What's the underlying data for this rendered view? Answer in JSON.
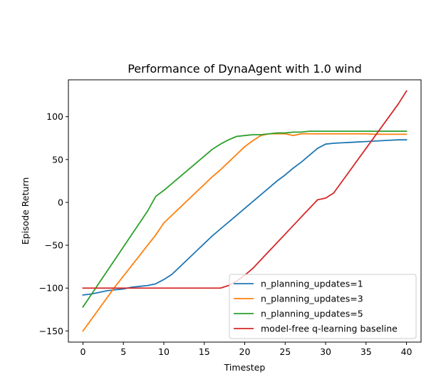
{
  "chart_data": {
    "type": "line",
    "title": "Performance of DynaAgent with 1.0 wind",
    "xlabel": "Timestep",
    "ylabel": "Episode Return",
    "xlim": [
      -1.8,
      41.8
    ],
    "ylim": [
      -163,
      143
    ],
    "xticks": [
      0,
      5,
      10,
      15,
      20,
      25,
      30,
      35,
      40
    ],
    "yticks": [
      -150,
      -100,
      -50,
      0,
      50,
      100
    ],
    "grid": false,
    "legend_position": "lower-right",
    "series": [
      {
        "name": "n_planning_updates=1",
        "color": "#1f77b4",
        "x": [
          0,
          1,
          2,
          3,
          4,
          5,
          6,
          7,
          8,
          9,
          10,
          11,
          12,
          13,
          14,
          15,
          16,
          17,
          18,
          19,
          20,
          21,
          22,
          23,
          24,
          25,
          26,
          27,
          28,
          29,
          30,
          31,
          32,
          33,
          34,
          35,
          36,
          37,
          38,
          39,
          40
        ],
        "y": [
          -108,
          -107,
          -105,
          -103,
          -102,
          -101,
          -99,
          -98,
          -97,
          -95,
          -90,
          -84,
          -75,
          -66,
          -57,
          -48,
          -39,
          -31,
          -23,
          -15,
          -7,
          1,
          9,
          17,
          25,
          32,
          40,
          47,
          55,
          63,
          68,
          69,
          69.5,
          70,
          70.5,
          71,
          71.5,
          72,
          72.5,
          73,
          73
        ]
      },
      {
        "name": "n_planning_updates=3",
        "color": "#ff7f0e",
        "x": [
          0,
          1,
          2,
          3,
          4,
          5,
          6,
          7,
          8,
          9,
          10,
          11,
          12,
          13,
          14,
          15,
          16,
          17,
          18,
          19,
          20,
          21,
          22,
          23,
          24,
          25,
          26,
          27,
          28,
          29,
          30,
          31,
          32,
          33,
          34,
          35,
          36,
          37,
          38,
          39,
          40
        ],
        "y": [
          -150,
          -137,
          -124,
          -111,
          -98,
          -86,
          -74,
          -62,
          -50,
          -38,
          -24,
          -15,
          -6,
          3,
          12,
          21,
          30,
          38,
          47,
          56,
          65,
          72,
          78,
          80,
          80,
          80,
          78,
          80,
          80,
          80,
          80,
          80,
          80,
          80,
          80,
          80,
          79.5,
          79.5,
          79.5,
          79.5,
          79.5
        ]
      },
      {
        "name": "n_planning_updates=5",
        "color": "#2ca02c",
        "x": [
          0,
          1,
          2,
          3,
          4,
          5,
          6,
          7,
          8,
          9,
          10,
          11,
          12,
          13,
          14,
          15,
          16,
          17,
          18,
          19,
          20,
          21,
          22,
          23,
          24,
          25,
          26,
          27,
          28,
          29,
          30,
          31,
          32,
          33,
          34,
          35,
          36,
          37,
          38,
          39,
          40
        ],
        "y": [
          -122,
          -108,
          -94,
          -80,
          -66,
          -52,
          -38,
          -24,
          -10,
          7,
          14,
          22,
          30,
          38,
          46,
          54,
          62,
          68,
          73,
          77,
          78,
          79,
          79,
          80,
          81,
          81,
          82,
          82,
          83,
          83,
          83,
          83,
          83,
          83,
          83,
          83,
          83,
          83,
          83,
          83,
          83
        ]
      },
      {
        "name": "model-free q-learning baseline",
        "color": "#d62728",
        "x": [
          0,
          1,
          2,
          3,
          4,
          5,
          6,
          7,
          8,
          9,
          10,
          11,
          12,
          13,
          14,
          15,
          16,
          17,
          18,
          19,
          20,
          21,
          22,
          23,
          24,
          25,
          26,
          27,
          28,
          29,
          30,
          31,
          32,
          33,
          34,
          35,
          36,
          37,
          38,
          39,
          40
        ],
        "y": [
          -100,
          -100,
          -100,
          -100,
          -100,
          -100,
          -100,
          -100,
          -100,
          -100,
          -100,
          -100,
          -100,
          -100,
          -100,
          -100,
          -100,
          -100,
          -97,
          -92,
          -85,
          -77,
          -67,
          -57,
          -47,
          -37,
          -27,
          -17,
          -7,
          3,
          5,
          11,
          24,
          37,
          50,
          63,
          76,
          89,
          102,
          115,
          130
        ]
      }
    ]
  }
}
